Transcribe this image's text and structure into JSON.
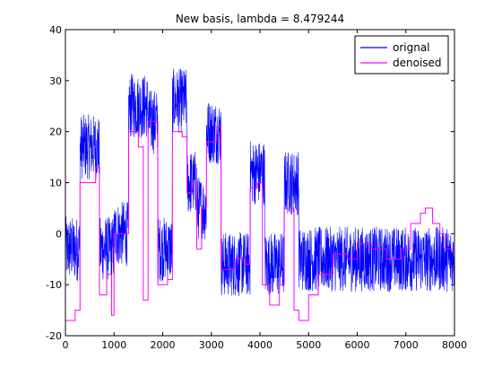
{
  "chart_data": {
    "type": "line",
    "title": "New basis, lambda = 8.479244",
    "xlabel": "",
    "ylabel": "",
    "xlim": [
      0,
      8000
    ],
    "ylim": [
      -20,
      40
    ],
    "xticks": [
      0,
      1000,
      2000,
      3000,
      4000,
      5000,
      6000,
      7000,
      8000
    ],
    "yticks": [
      -20,
      -10,
      0,
      10,
      20,
      30,
      40
    ],
    "legend_position": "top-right",
    "grid": false,
    "series": [
      {
        "name": "orignal",
        "color": "#0000ff",
        "noise_amplitude": 4,
        "segments": [
          {
            "x0": 0,
            "x1": 300,
            "mean": -3
          },
          {
            "x0": 300,
            "x1": 700,
            "mean": 17
          },
          {
            "x0": 700,
            "x1": 1000,
            "mean": -3
          },
          {
            "x0": 1000,
            "x1": 1300,
            "mean": 0
          },
          {
            "x0": 1300,
            "x1": 1700,
            "mean": 25
          },
          {
            "x0": 1700,
            "x1": 1900,
            "mean": 22
          },
          {
            "x0": 1900,
            "x1": 2200,
            "mean": -3
          },
          {
            "x0": 2200,
            "x1": 2500,
            "mean": 26
          },
          {
            "x0": 2500,
            "x1": 2700,
            "mean": 10
          },
          {
            "x0": 2700,
            "x1": 2900,
            "mean": 5
          },
          {
            "x0": 2900,
            "x1": 3200,
            "mean": 20
          },
          {
            "x0": 3200,
            "x1": 3800,
            "mean": -6
          },
          {
            "x0": 3800,
            "x1": 4100,
            "mean": 12
          },
          {
            "x0": 4100,
            "x1": 4500,
            "mean": -6
          },
          {
            "x0": 4500,
            "x1": 4800,
            "mean": 10
          },
          {
            "x0": 4800,
            "x1": 8000,
            "mean": -5
          }
        ]
      },
      {
        "name": "denoised",
        "color": "#ff00ff",
        "points": [
          [
            0,
            -17
          ],
          [
            200,
            -15
          ],
          [
            300,
            10
          ],
          [
            550,
            10
          ],
          [
            620,
            13
          ],
          [
            700,
            -12
          ],
          [
            850,
            -8
          ],
          [
            950,
            -16
          ],
          [
            1000,
            0
          ],
          [
            1250,
            0
          ],
          [
            1300,
            20
          ],
          [
            1500,
            17
          ],
          [
            1600,
            -13
          ],
          [
            1700,
            22
          ],
          [
            1900,
            -10
          ],
          [
            2100,
            -9
          ],
          [
            2200,
            20
          ],
          [
            2400,
            19
          ],
          [
            2500,
            8
          ],
          [
            2600,
            10
          ],
          [
            2700,
            -3
          ],
          [
            2800,
            5
          ],
          [
            2900,
            18
          ],
          [
            3100,
            21
          ],
          [
            3200,
            -7
          ],
          [
            3500,
            -5
          ],
          [
            3700,
            -6
          ],
          [
            3800,
            9
          ],
          [
            3950,
            10
          ],
          [
            4050,
            -10
          ],
          [
            4200,
            -14
          ],
          [
            4400,
            -10
          ],
          [
            4500,
            5
          ],
          [
            4700,
            -15
          ],
          [
            4800,
            -17
          ],
          [
            5000,
            -12
          ],
          [
            5200,
            -8
          ],
          [
            5500,
            -4
          ],
          [
            5800,
            -5
          ],
          [
            6000,
            -2
          ],
          [
            6300,
            -3
          ],
          [
            6600,
            -5
          ],
          [
            6900,
            -3
          ],
          [
            7100,
            2
          ],
          [
            7300,
            4
          ],
          [
            7400,
            5
          ],
          [
            7550,
            2
          ],
          [
            7700,
            0
          ],
          [
            7800,
            -3
          ],
          [
            8000,
            -5
          ]
        ]
      }
    ]
  }
}
